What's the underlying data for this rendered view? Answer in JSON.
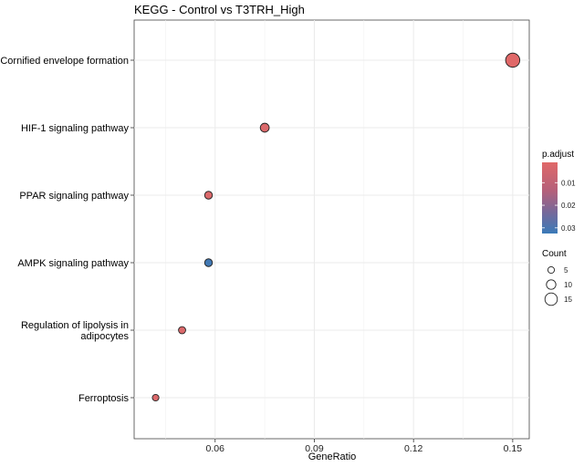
{
  "chart_data": {
    "type": "scatter",
    "title": "KEGG - Control vs T3TRH_High",
    "xlabel": "GeneRatio",
    "ylabel": "",
    "xlim": [
      0.0355,
      0.155
    ],
    "xticks": [
      "0.06",
      "0.09",
      "0.12",
      "0.15"
    ],
    "categories": [
      "Cornified envelope formation",
      "HIF-1 signaling pathway",
      "PPAR signaling pathway",
      "AMPK signaling pathway",
      "Regulation of lipolysis in adipocytes",
      "Ferroptosis"
    ],
    "points": [
      {
        "pathway": "Cornified envelope formation",
        "gene_ratio": 0.15,
        "count": 18,
        "p_adjust": 0.001
      },
      {
        "pathway": "HIF-1 signaling pathway",
        "gene_ratio": 0.075,
        "count": 9,
        "p_adjust": 0.002
      },
      {
        "pathway": "PPAR signaling pathway",
        "gene_ratio": 0.058,
        "count": 7,
        "p_adjust": 0.002
      },
      {
        "pathway": "AMPK signaling pathway",
        "gene_ratio": 0.058,
        "count": 7,
        "p_adjust": 0.031
      },
      {
        "pathway": "Regulation of lipolysis in adipocytes",
        "gene_ratio": 0.05,
        "count": 6,
        "p_adjust": 0.002
      },
      {
        "pathway": "Ferroptosis",
        "gene_ratio": 0.042,
        "count": 5,
        "p_adjust": 0.002
      }
    ],
    "grid": true,
    "legend_position": "right",
    "color_legend": {
      "title": "p.adjust",
      "ticks": [
        "0.01",
        "0.02",
        "0.03"
      ],
      "low_color": "#e06868",
      "high_color": "#3a7ab8",
      "range": [
        0.001,
        0.0325
      ]
    },
    "size_legend": {
      "title": "Count",
      "entries": [
        "5",
        "10",
        "15"
      ]
    }
  }
}
